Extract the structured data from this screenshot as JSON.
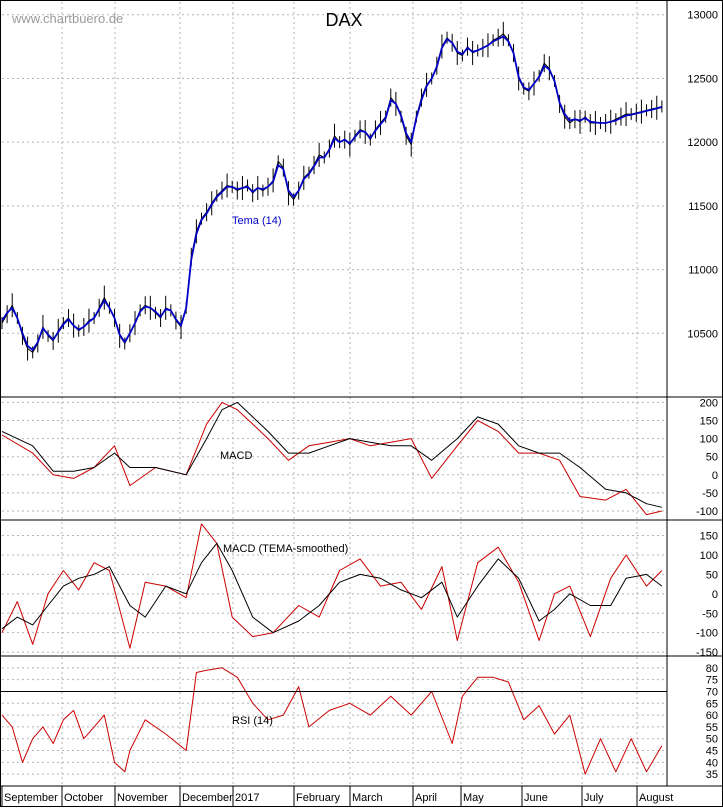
{
  "watermark": "www.chartbuero.de",
  "chart_data": [
    {
      "type": "line",
      "title": "DAX",
      "legend": [
        "Tema (14)"
      ],
      "ylim": [
        10000,
        13100
      ],
      "yticks": [
        10000,
        10500,
        11000,
        11500,
        12000,
        12500,
        13000
      ],
      "grid": true,
      "series": [
        {
          "name": "DAX",
          "color": "#000000",
          "x": [
            0,
            5,
            10,
            15,
            20,
            25,
            30,
            35,
            40,
            45,
            50,
            55,
            60,
            65,
            70,
            75,
            80,
            85,
            90,
            95,
            100,
            105,
            110,
            115,
            120,
            125,
            130,
            135,
            140,
            145,
            150,
            155,
            160,
            165,
            170,
            175,
            180,
            185,
            190,
            195,
            200,
            205,
            210,
            215,
            220,
            225,
            230,
            235,
            240,
            245,
            250,
            255,
            260,
            265,
            270,
            275,
            280,
            285,
            290,
            295,
            300,
            305,
            310,
            315,
            320,
            325,
            330,
            335,
            340,
            345,
            350,
            355,
            360,
            365,
            370,
            375,
            380,
            385,
            390,
            395,
            400,
            405,
            410,
            415,
            420,
            425,
            430,
            435,
            440,
            445,
            450,
            455,
            460,
            465,
            470,
            475,
            480,
            485,
            490,
            495,
            500,
            505,
            510,
            515,
            520,
            525,
            530,
            535,
            540,
            545,
            550,
            555,
            560,
            565,
            570,
            575,
            580,
            585,
            590,
            595,
            600,
            605,
            610,
            615,
            620,
            625,
            630,
            635,
            640,
            645
          ],
          "y": [
            10580,
            10650,
            10720,
            10620,
            10480,
            10380,
            10350,
            10420,
            10550,
            10480,
            10440,
            10520,
            10580,
            10620,
            10560,
            10520,
            10550,
            10600,
            10620,
            10700,
            10780,
            10700,
            10620,
            10480,
            10420,
            10500,
            10580,
            10680,
            10720,
            10700,
            10660,
            10620,
            10700,
            10680,
            10600,
            10550,
            10700,
            11100,
            11300,
            11400,
            11450,
            11520,
            11580,
            11620,
            11660,
            11650,
            11620,
            11640,
            11660,
            11600,
            11640,
            11620,
            11650,
            11700,
            11850,
            11800,
            11600,
            11550,
            11620,
            11720,
            11760,
            11820,
            11900,
            11880,
            11950,
            12050,
            12000,
            12020,
            11980,
            12050,
            12100,
            12080,
            12020,
            12100,
            12150,
            12200,
            12350,
            12300,
            12200,
            12050,
            11980,
            12200,
            12350,
            12450,
            12500,
            12600,
            12750,
            12820,
            12780,
            12700,
            12680,
            12750,
            12700,
            12720,
            12740,
            12760,
            12800,
            12820,
            12850,
            12800,
            12700,
            12500,
            12420,
            12400,
            12460,
            12520,
            12620,
            12580,
            12480,
            12300,
            12200,
            12150,
            12180,
            12160,
            12200,
            12150,
            12150,
            12150,
            12150,
            12160,
            12180,
            12200,
            12220,
            12220,
            12230,
            12240,
            12250,
            12260,
            12270,
            12280
          ]
        },
        {
          "name": "Tema (14)",
          "color": "#0000c8",
          "x": [
            0,
            5,
            10,
            15,
            20,
            25,
            30,
            35,
            40,
            45,
            50,
            55,
            60,
            65,
            70,
            75,
            80,
            85,
            90,
            95,
            100,
            105,
            110,
            115,
            120,
            125,
            130,
            135,
            140,
            145,
            150,
            155,
            160,
            165,
            170,
            175,
            180,
            185,
            190,
            195,
            200,
            205,
            210,
            215,
            220,
            225,
            230,
            235,
            240,
            245,
            250,
            255,
            260,
            265,
            270,
            275,
            280,
            285,
            290,
            295,
            300,
            305,
            310,
            315,
            320,
            325,
            330,
            335,
            340,
            345,
            350,
            355,
            360,
            365,
            370,
            375,
            380,
            385,
            390,
            395,
            400,
            405,
            410,
            415,
            420,
            425,
            430,
            435,
            440,
            445,
            450,
            455,
            460,
            465,
            470,
            475,
            480,
            485,
            490,
            495,
            500,
            505,
            510,
            515,
            520,
            525,
            530,
            535,
            540,
            545,
            550,
            555,
            560,
            565,
            570,
            575,
            580,
            585,
            590,
            595,
            600,
            605,
            610,
            615,
            620,
            625,
            630,
            635,
            640,
            645
          ],
          "y": [
            10600,
            10660,
            10700,
            10620,
            10500,
            10400,
            10370,
            10430,
            10540,
            10490,
            10450,
            10510,
            10570,
            10610,
            10560,
            10530,
            10550,
            10590,
            10620,
            10690,
            10760,
            10700,
            10620,
            10490,
            10430,
            10500,
            10580,
            10670,
            10710,
            10700,
            10670,
            10630,
            10690,
            10680,
            10610,
            10560,
            10700,
            11080,
            11280,
            11390,
            11440,
            11510,
            11570,
            11610,
            11650,
            11650,
            11630,
            11640,
            11650,
            11610,
            11640,
            11630,
            11650,
            11690,
            11820,
            11790,
            11620,
            11570,
            11620,
            11710,
            11750,
            11810,
            11880,
            11880,
            11940,
            12030,
            12000,
            12020,
            11990,
            12040,
            12090,
            12080,
            12030,
            12090,
            12140,
            12190,
            12330,
            12300,
            12210,
            12070,
            12000,
            12190,
            12330,
            12440,
            12500,
            12590,
            12740,
            12810,
            12780,
            12710,
            12690,
            12740,
            12710,
            12720,
            12740,
            12760,
            12790,
            12810,
            12830,
            12790,
            12700,
            12510,
            12430,
            12410,
            12460,
            12510,
            12600,
            12570,
            12480,
            12310,
            12220,
            12170,
            12180,
            12170,
            12190,
            12160,
            12155,
            12150,
            12150,
            12160,
            12170,
            12190,
            12210,
            12215,
            12225,
            12235,
            12245,
            12255,
            12265,
            12275
          ]
        }
      ]
    },
    {
      "type": "line",
      "title": "MACD",
      "ylim": [
        -125,
        215
      ],
      "yticks": [
        -100,
        -50,
        0,
        50,
        100,
        150,
        200
      ],
      "grid": true,
      "series": [
        {
          "color": "#cc0000",
          "x": [
            0,
            30,
            50,
            70,
            90,
            110,
            125,
            150,
            180,
            200,
            215,
            230,
            245,
            260,
            280,
            300,
            320,
            340,
            360,
            380,
            400,
            420,
            445,
            465,
            485,
            505,
            525,
            545,
            565,
            590,
            610,
            630,
            645
          ],
          "y": [
            110,
            60,
            0,
            -10,
            20,
            80,
            -30,
            20,
            0,
            140,
            200,
            180,
            140,
            100,
            40,
            80,
            90,
            100,
            80,
            90,
            100,
            -10,
            80,
            150,
            120,
            60,
            60,
            40,
            -60,
            -70,
            -40,
            -110,
            -100
          ]
        },
        {
          "color": "#000000",
          "x": [
            0,
            30,
            50,
            70,
            90,
            110,
            125,
            150,
            180,
            200,
            215,
            230,
            245,
            260,
            280,
            300,
            320,
            340,
            360,
            380,
            400,
            420,
            445,
            465,
            485,
            505,
            525,
            545,
            565,
            590,
            610,
            630,
            645
          ],
          "y": [
            120,
            80,
            10,
            10,
            20,
            60,
            20,
            20,
            0,
            100,
            180,
            200,
            160,
            120,
            60,
            60,
            80,
            100,
            90,
            80,
            80,
            40,
            100,
            160,
            140,
            80,
            60,
            60,
            20,
            -40,
            -50,
            -80,
            -90
          ]
        }
      ]
    },
    {
      "type": "line",
      "title": "MACD (TEMA-smoothed)",
      "ylim": [
        -160,
        190
      ],
      "yticks": [
        -150,
        -100,
        -50,
        0,
        50,
        100,
        150
      ],
      "grid": true,
      "series": [
        {
          "color": "#cc0000",
          "x": [
            0,
            15,
            30,
            45,
            60,
            75,
            90,
            105,
            125,
            140,
            160,
            180,
            195,
            210,
            225,
            245,
            265,
            290,
            310,
            330,
            350,
            370,
            390,
            410,
            430,
            445,
            465,
            485,
            505,
            525,
            540,
            555,
            575,
            595,
            610,
            630,
            645
          ],
          "y": [
            -100,
            -20,
            -130,
            0,
            60,
            10,
            80,
            60,
            -140,
            30,
            20,
            -10,
            180,
            130,
            -60,
            -110,
            -100,
            -30,
            -60,
            60,
            90,
            20,
            30,
            -40,
            70,
            -120,
            80,
            120,
            30,
            -120,
            0,
            20,
            -110,
            40,
            100,
            20,
            60
          ]
        },
        {
          "color": "#000000",
          "x": [
            0,
            15,
            30,
            45,
            60,
            75,
            90,
            105,
            125,
            140,
            160,
            180,
            195,
            210,
            225,
            245,
            265,
            290,
            310,
            330,
            350,
            370,
            390,
            410,
            430,
            445,
            465,
            485,
            505,
            525,
            540,
            555,
            575,
            595,
            610,
            630,
            645
          ],
          "y": [
            -90,
            -60,
            -80,
            -30,
            20,
            40,
            50,
            70,
            -30,
            -60,
            20,
            0,
            80,
            130,
            60,
            -60,
            -100,
            -70,
            -30,
            30,
            50,
            40,
            10,
            -10,
            30,
            -60,
            20,
            90,
            40,
            -70,
            -40,
            0,
            -30,
            -30,
            40,
            50,
            20
          ]
        }
      ]
    },
    {
      "type": "line",
      "title": "RSI (14)",
      "ylim": [
        30,
        85
      ],
      "yticks": [
        35,
        40,
        45,
        50,
        55,
        60,
        65,
        70,
        75,
        80
      ],
      "hlines": [
        30,
        70
      ],
      "grid": true,
      "series": [
        {
          "color": "#cc0000",
          "x": [
            0,
            10,
            20,
            30,
            40,
            50,
            60,
            70,
            80,
            90,
            100,
            110,
            120,
            125,
            140,
            160,
            180,
            190,
            200,
            215,
            230,
            245,
            260,
            275,
            290,
            300,
            320,
            340,
            360,
            380,
            400,
            420,
            440,
            450,
            465,
            480,
            495,
            510,
            525,
            540,
            555,
            570,
            585,
            600,
            615,
            630,
            645
          ],
          "y": [
            60,
            55,
            40,
            50,
            55,
            48,
            58,
            62,
            50,
            55,
            60,
            40,
            36,
            45,
            58,
            52,
            45,
            78,
            79,
            80,
            76,
            65,
            58,
            60,
            72,
            55,
            62,
            65,
            60,
            68,
            60,
            70,
            48,
            68,
            76,
            76,
            74,
            58,
            64,
            52,
            60,
            35,
            50,
            36,
            50,
            36,
            47
          ]
        }
      ]
    }
  ],
  "x_axis": {
    "labels": [
      "September",
      "October",
      "November",
      "December",
      "2017",
      "February",
      "March",
      "April",
      "May",
      "June",
      "July",
      "August"
    ]
  }
}
